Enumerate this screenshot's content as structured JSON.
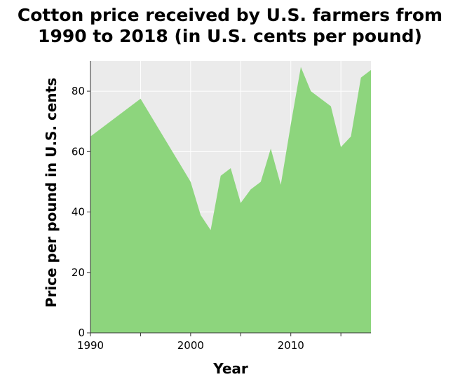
{
  "chart_data": {
    "type": "area",
    "title_lines": [
      "Cotton price received by U.S. farmers from",
      "1990 to 2018 (in U.S. cents per pound)"
    ],
    "xlabel": "Year",
    "ylabel": "Price per pound in U.S. cents",
    "xlim": [
      1990,
      2018
    ],
    "ylim": [
      0,
      90
    ],
    "xticks": [
      1990,
      2000,
      2010
    ],
    "xticks_minor": [
      1995,
      2005,
      2015
    ],
    "yticks": [
      0,
      20,
      40,
      60,
      80
    ],
    "grid": true,
    "fill_color": "#8dd57d",
    "background_color": "#ebebeb",
    "gridline_color": "#ffffff",
    "x": [
      1990,
      1995,
      2000,
      2001,
      2002,
      2003,
      2004,
      2005,
      2006,
      2007,
      2008,
      2009,
      2010,
      2011,
      2012,
      2013,
      2014,
      2015,
      2016,
      2017,
      2018
    ],
    "y": [
      65,
      77.5,
      50,
      39,
      34,
      52,
      54.5,
      43,
      47.5,
      50,
      61,
      49,
      69,
      88,
      80,
      77.5,
      75,
      61.5,
      65,
      84.5,
      87
    ]
  }
}
